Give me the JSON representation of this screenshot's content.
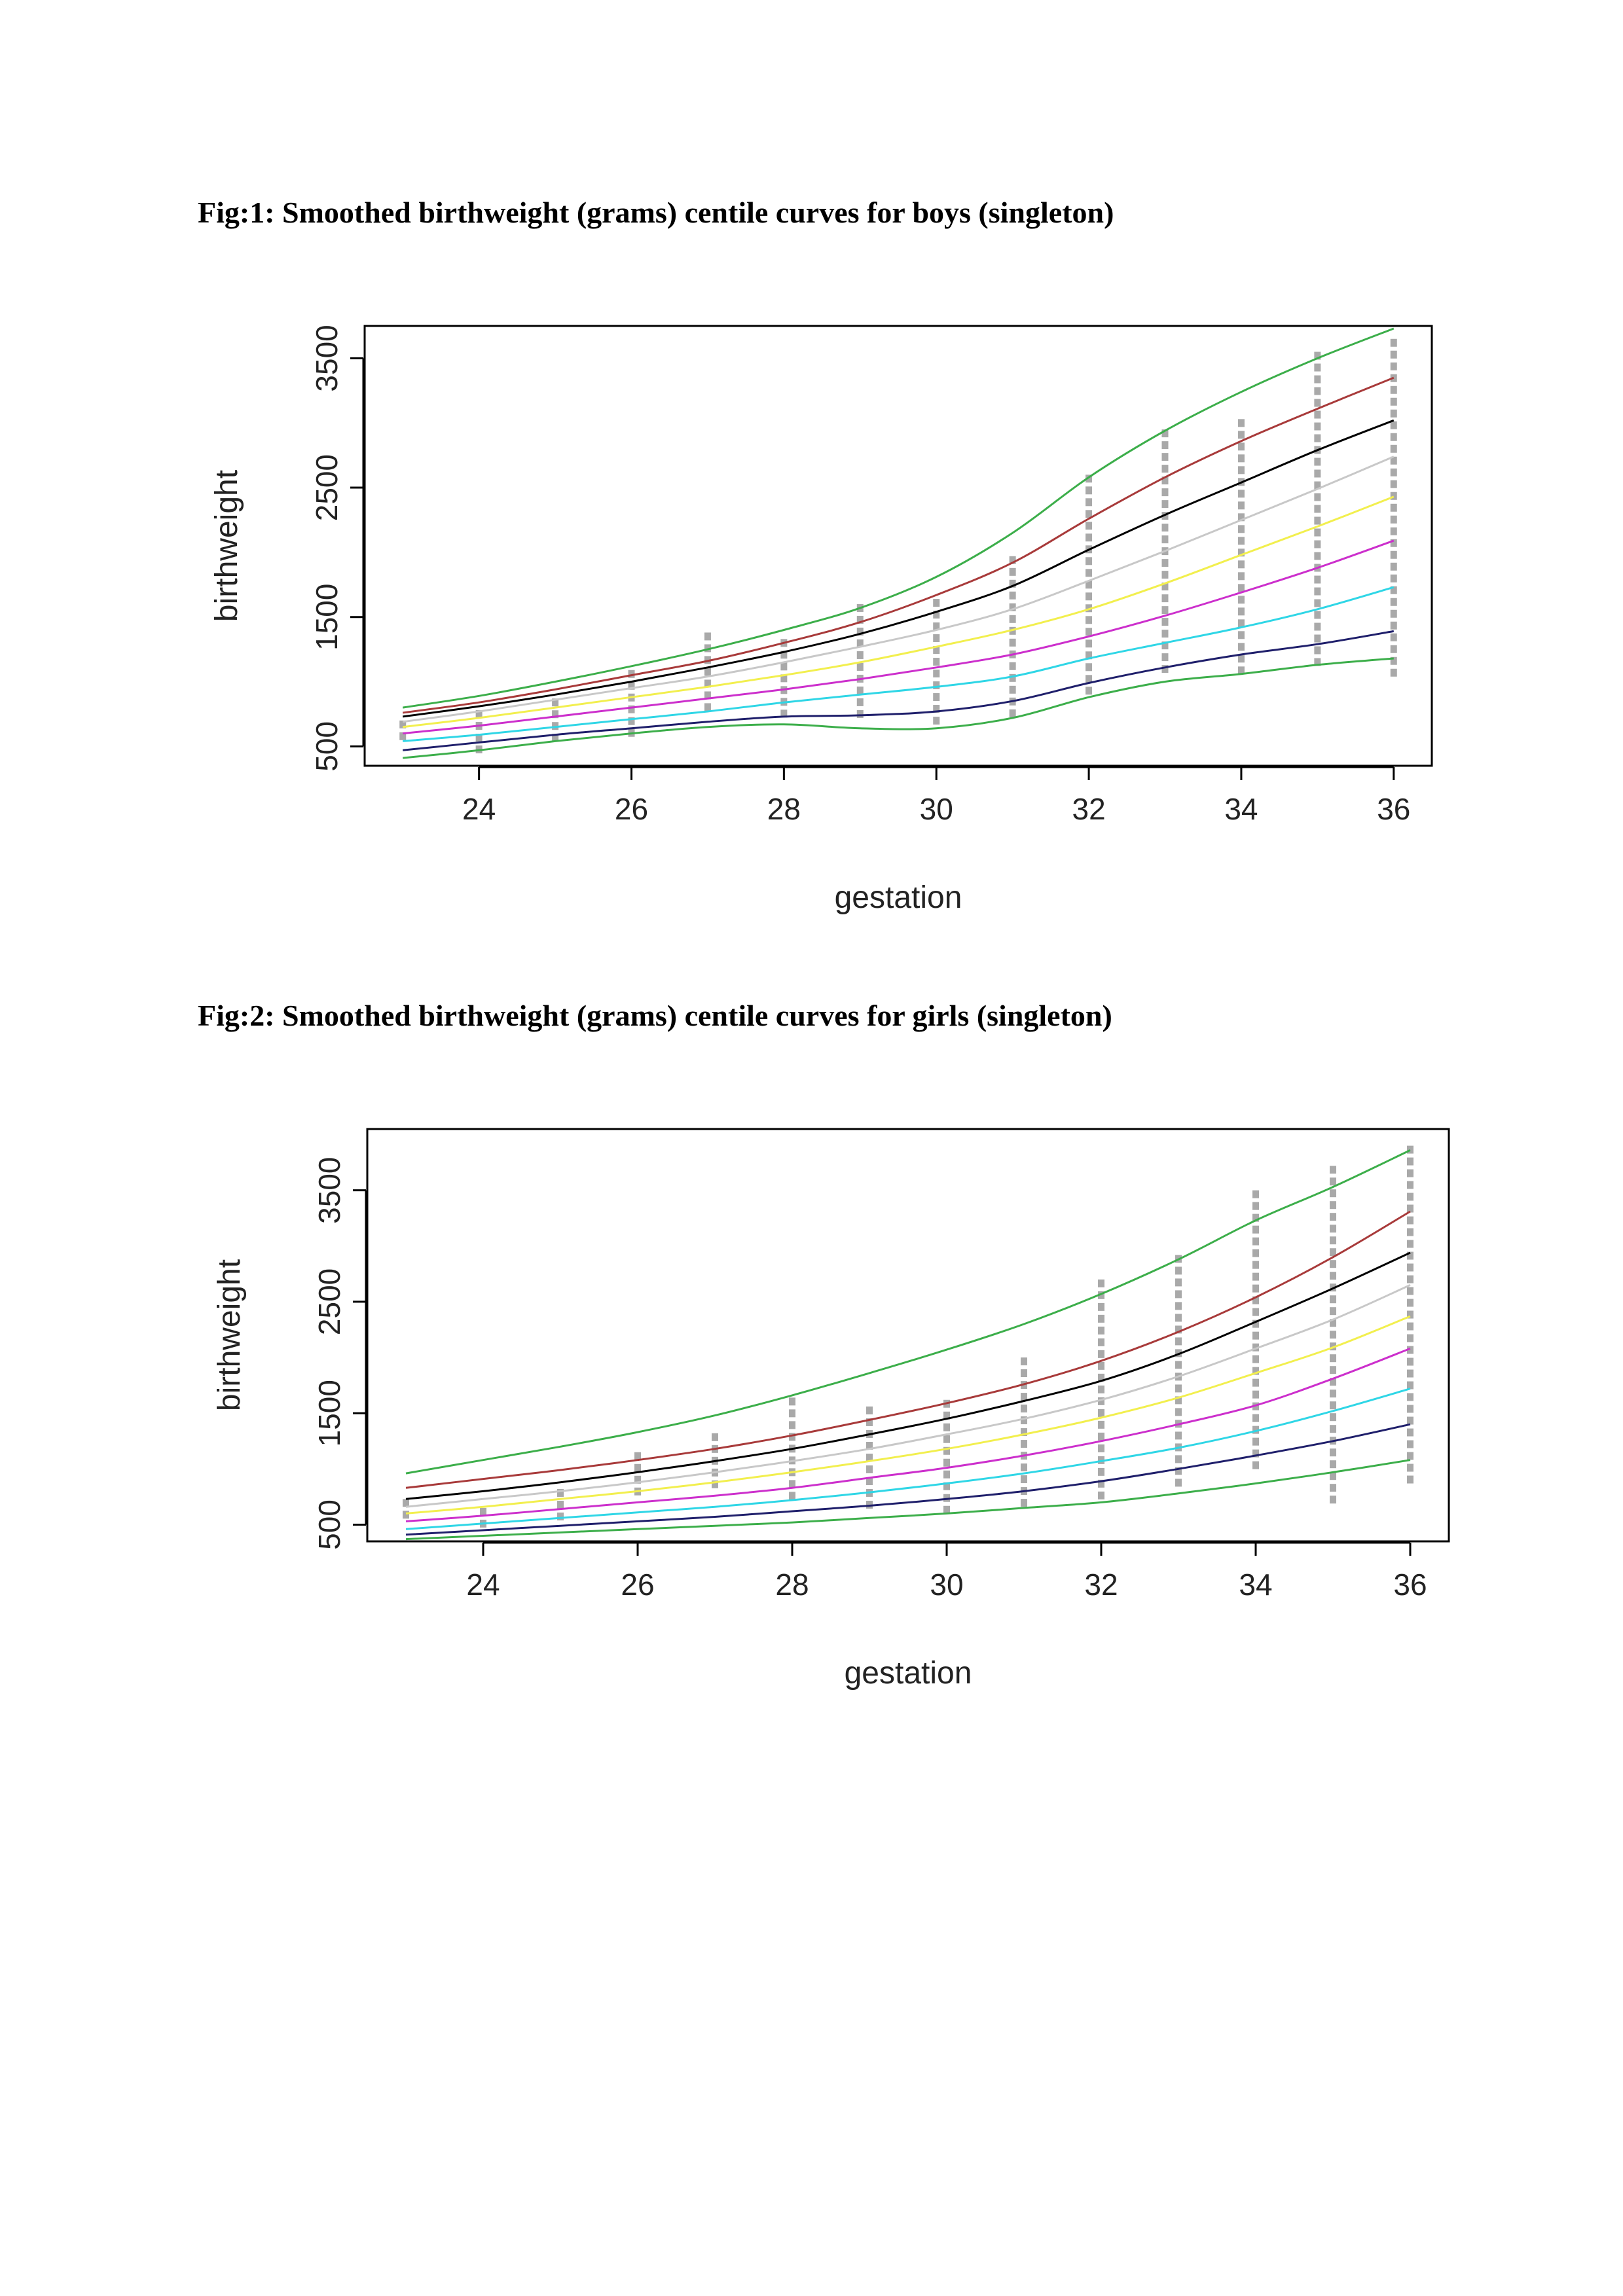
{
  "figures": [
    {
      "caption": "Fig:1: Smoothed birthweight (grams) centile curves for boys (singleton)"
    },
    {
      "caption": "Fig:2: Smoothed birthweight (grams) centile curves for girls (singleton)"
    }
  ],
  "colors": {
    "frame": "#000000",
    "points": "#a9a9a9",
    "curves": [
      "#3cae4a",
      "#1f1f6b",
      "#2fd6e6",
      "#cc2fcc",
      "#f2ef4e",
      "#c8c8c8",
      "#000000",
      "#a83a3a",
      "#3cae4a"
    ]
  },
  "chart_data": [
    {
      "type": "line",
      "xlabel": "gestation",
      "ylabel": "birthweight",
      "xlim": [
        22.5,
        36.5
      ],
      "ylim": [
        350,
        3750
      ],
      "x_ticks": [
        24,
        26,
        28,
        30,
        32,
        34,
        36
      ],
      "y_ticks": [
        500,
        1500,
        2500,
        3500
      ],
      "x_tick_labels": [
        "24",
        "26",
        "28",
        "30",
        "32",
        "34",
        "36"
      ],
      "y_tick_labels": [
        "500",
        "1500",
        "2500",
        "3500"
      ],
      "x": [
        23,
        24,
        25,
        26,
        27,
        28,
        29,
        30,
        31,
        32,
        33,
        34,
        35,
        36
      ],
      "series": [
        {
          "values": [
            410,
            470,
            540,
            600,
            650,
            670,
            640,
            640,
            720,
            880,
            1000,
            1060,
            1130,
            1180
          ]
        },
        {
          "values": [
            470,
            530,
            590,
            640,
            690,
            730,
            740,
            770,
            850,
            990,
            1110,
            1210,
            1290,
            1390
          ]
        },
        {
          "values": [
            540,
            590,
            650,
            710,
            770,
            840,
            900,
            960,
            1040,
            1180,
            1300,
            1420,
            1560,
            1730
          ]
        },
        {
          "values": [
            600,
            660,
            730,
            800,
            870,
            940,
            1020,
            1110,
            1210,
            1350,
            1510,
            1690,
            1880,
            2090
          ]
        },
        {
          "values": [
            650,
            720,
            800,
            880,
            960,
            1050,
            1150,
            1270,
            1400,
            1560,
            1760,
            1980,
            2200,
            2430
          ]
        },
        {
          "values": [
            690,
            770,
            860,
            950,
            1040,
            1150,
            1270,
            1400,
            1560,
            1780,
            2010,
            2250,
            2490,
            2740
          ]
        },
        {
          "values": [
            730,
            810,
            900,
            1000,
            1110,
            1230,
            1370,
            1540,
            1740,
            2020,
            2290,
            2540,
            2790,
            3020
          ]
        },
        {
          "values": [
            760,
            840,
            940,
            1050,
            1160,
            1300,
            1460,
            1670,
            1920,
            2260,
            2580,
            2860,
            3110,
            3350
          ]
        },
        {
          "values": [
            800,
            890,
            1000,
            1120,
            1250,
            1400,
            1570,
            1810,
            2150,
            2580,
            2940,
            3240,
            3500,
            3730
          ]
        }
      ],
      "points": [
        {
          "x": 23,
          "ymin": 560,
          "ymax": 700
        },
        {
          "x": 24,
          "ymin": 470,
          "ymax": 780
        },
        {
          "x": 25,
          "ymin": 560,
          "ymax": 870
        },
        {
          "x": 26,
          "ymin": 620,
          "ymax": 1090
        },
        {
          "x": 27,
          "ymin": 760,
          "ymax": 1380
        },
        {
          "x": 28,
          "ymin": 740,
          "ymax": 1330
        },
        {
          "x": 29,
          "ymin": 720,
          "ymax": 1600
        },
        {
          "x": 30,
          "ymin": 700,
          "ymax": 1640
        },
        {
          "x": 31,
          "ymin": 740,
          "ymax": 1970
        },
        {
          "x": 32,
          "ymin": 940,
          "ymax": 2600
        },
        {
          "x": 33,
          "ymin": 1100,
          "ymax": 2950
        },
        {
          "x": 34,
          "ymin": 1100,
          "ymax": 3030
        },
        {
          "x": 35,
          "ymin": 1150,
          "ymax": 3550
        },
        {
          "x": 36,
          "ymin": 1100,
          "ymax": 3650
        }
      ]
    },
    {
      "type": "line",
      "xlabel": "gestation",
      "ylabel": "birthweight",
      "xlim": [
        22.5,
        36.5
      ],
      "ylim": [
        350,
        4050
      ],
      "x_ticks": [
        24,
        26,
        28,
        30,
        32,
        34,
        36
      ],
      "y_ticks": [
        500,
        1500,
        2500,
        3500
      ],
      "x_tick_labels": [
        "24",
        "26",
        "28",
        "30",
        "32",
        "34",
        "36"
      ],
      "y_tick_labels": [
        "500",
        "1500",
        "2500",
        "3500"
      ],
      "x": [
        23,
        24,
        25,
        26,
        27,
        28,
        29,
        30,
        31,
        32,
        33,
        34,
        35,
        36
      ],
      "series": [
        {
          "values": [
            370,
            400,
            430,
            460,
            490,
            520,
            560,
            600,
            650,
            700,
            780,
            870,
            970,
            1080
          ]
        },
        {
          "values": [
            410,
            450,
            490,
            530,
            570,
            620,
            670,
            730,
            800,
            890,
            1000,
            1120,
            1250,
            1400
          ]
        },
        {
          "values": [
            460,
            510,
            560,
            610,
            660,
            720,
            790,
            870,
            960,
            1070,
            1190,
            1340,
            1520,
            1720
          ]
        },
        {
          "values": [
            530,
            580,
            640,
            700,
            760,
            830,
            920,
            1010,
            1120,
            1250,
            1400,
            1570,
            1810,
            2080
          ]
        },
        {
          "values": [
            600,
            660,
            730,
            800,
            880,
            970,
            1070,
            1180,
            1310,
            1460,
            1640,
            1860,
            2090,
            2370
          ]
        },
        {
          "values": [
            660,
            730,
            800,
            880,
            970,
            1070,
            1180,
            1310,
            1450,
            1620,
            1830,
            2080,
            2340,
            2650
          ]
        },
        {
          "values": [
            730,
            800,
            880,
            970,
            1070,
            1180,
            1310,
            1450,
            1610,
            1790,
            2030,
            2320,
            2620,
            2940
          ]
        },
        {
          "values": [
            830,
            910,
            990,
            1080,
            1180,
            1300,
            1440,
            1590,
            1760,
            1970,
            2230,
            2540,
            2900,
            3310
          ]
        },
        {
          "values": [
            960,
            1080,
            1200,
            1330,
            1480,
            1660,
            1860,
            2070,
            2300,
            2570,
            2880,
            3230,
            3530,
            3860
          ]
        }
      ],
      "points": [
        {
          "x": 23,
          "ymin": 600,
          "ymax": 730
        },
        {
          "x": 24,
          "ymin": 500,
          "ymax": 650
        },
        {
          "x": 25,
          "ymin": 520,
          "ymax": 820
        },
        {
          "x": 26,
          "ymin": 810,
          "ymax": 1150
        },
        {
          "x": 27,
          "ymin": 880,
          "ymax": 1320
        },
        {
          "x": 28,
          "ymin": 700,
          "ymax": 1640
        },
        {
          "x": 29,
          "ymin": 700,
          "ymax": 1560
        },
        {
          "x": 30,
          "ymin": 640,
          "ymax": 1620
        },
        {
          "x": 31,
          "ymin": 700,
          "ymax": 2000
        },
        {
          "x": 32,
          "ymin": 770,
          "ymax": 2700
        },
        {
          "x": 33,
          "ymin": 860,
          "ymax": 2920
        },
        {
          "x": 34,
          "ymin": 1020,
          "ymax": 3500
        },
        {
          "x": 35,
          "ymin": 750,
          "ymax": 3720
        },
        {
          "x": 36,
          "ymin": 900,
          "ymax": 3900
        }
      ]
    }
  ]
}
